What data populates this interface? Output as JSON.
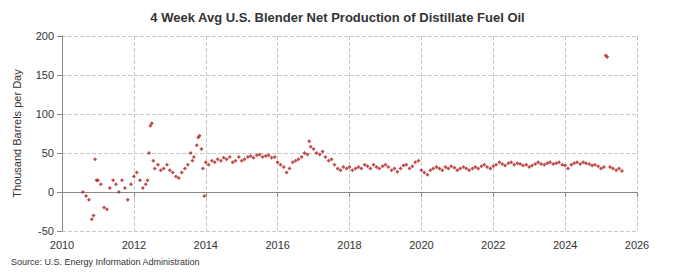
{
  "chart_data": {
    "type": "scatter",
    "title": "4 Week Avg U.S. Blender Net Production of Distillate Fuel Oil",
    "y_label": "Thousand Barrels per Day",
    "source": "Source: U.S. Energy Information Administration",
    "color": "#b22222",
    "marker": "diamond",
    "grid": true,
    "xlim": [
      2010,
      2026
    ],
    "xticks": [
      2010,
      2012,
      2014,
      2016,
      2018,
      2020,
      2022,
      2024,
      2026
    ],
    "ylim": [
      -50,
      200
    ],
    "yticks": [
      -50,
      0,
      50,
      100,
      150,
      200
    ],
    "x": [
      2010.58,
      2010.67,
      2010.75,
      2010.83,
      2010.88,
      2010.92,
      2010.96,
      2011.0,
      2011.08,
      2011.17,
      2011.25,
      2011.33,
      2011.42,
      2011.5,
      2011.58,
      2011.67,
      2011.75,
      2011.83,
      2011.92,
      2012.0,
      2012.08,
      2012.17,
      2012.25,
      2012.33,
      2012.38,
      2012.42,
      2012.46,
      2012.5,
      2012.54,
      2012.58,
      2012.67,
      2012.75,
      2012.83,
      2012.92,
      2013.0,
      2013.08,
      2013.17,
      2013.25,
      2013.33,
      2013.42,
      2013.5,
      2013.58,
      2013.63,
      2013.67,
      2013.75,
      2013.79,
      2013.83,
      2013.88,
      2013.92,
      2013.96,
      2014.0,
      2014.08,
      2014.17,
      2014.25,
      2014.33,
      2014.42,
      2014.5,
      2014.58,
      2014.67,
      2014.75,
      2014.83,
      2014.92,
      2015.0,
      2015.08,
      2015.17,
      2015.25,
      2015.33,
      2015.42,
      2015.5,
      2015.58,
      2015.67,
      2015.75,
      2015.83,
      2015.92,
      2016.0,
      2016.08,
      2016.17,
      2016.25,
      2016.33,
      2016.42,
      2016.5,
      2016.58,
      2016.67,
      2016.75,
      2016.83,
      2016.88,
      2016.92,
      2017.0,
      2017.08,
      2017.17,
      2017.25,
      2017.33,
      2017.42,
      2017.5,
      2017.58,
      2017.67,
      2017.75,
      2017.83,
      2017.92,
      2018.0,
      2018.08,
      2018.17,
      2018.25,
      2018.33,
      2018.42,
      2018.5,
      2018.58,
      2018.67,
      2018.75,
      2018.83,
      2018.92,
      2019.0,
      2019.08,
      2019.17,
      2019.25,
      2019.33,
      2019.42,
      2019.5,
      2019.58,
      2019.67,
      2019.75,
      2019.83,
      2019.92,
      2020.0,
      2020.08,
      2020.17,
      2020.25,
      2020.33,
      2020.42,
      2020.5,
      2020.58,
      2020.67,
      2020.75,
      2020.83,
      2020.92,
      2021.0,
      2021.08,
      2021.17,
      2021.25,
      2021.33,
      2021.42,
      2021.5,
      2021.58,
      2021.67,
      2021.75,
      2021.83,
      2021.92,
      2022.0,
      2022.08,
      2022.17,
      2022.25,
      2022.33,
      2022.42,
      2022.5,
      2022.58,
      2022.67,
      2022.75,
      2022.83,
      2022.92,
      2023.0,
      2023.08,
      2023.17,
      2023.25,
      2023.33,
      2023.42,
      2023.5,
      2023.58,
      2023.67,
      2023.75,
      2023.83,
      2023.92,
      2024.0,
      2024.08,
      2024.17,
      2024.25,
      2024.33,
      2024.42,
      2024.5,
      2024.58,
      2024.67,
      2024.75,
      2024.83,
      2024.92,
      2025.0,
      2025.08,
      2025.13,
      2025.17,
      2025.25,
      2025.33,
      2025.42,
      2025.5,
      2025.58
    ],
    "values": [
      0,
      -5,
      -10,
      -35,
      -30,
      42,
      15,
      15,
      10,
      -20,
      -22,
      5,
      15,
      10,
      0,
      15,
      5,
      -10,
      10,
      20,
      25,
      15,
      5,
      10,
      15,
      50,
      85,
      88,
      40,
      30,
      35,
      28,
      30,
      35,
      28,
      25,
      20,
      18,
      25,
      30,
      35,
      50,
      40,
      45,
      60,
      70,
      72,
      55,
      30,
      -5,
      38,
      35,
      40,
      38,
      42,
      40,
      44,
      42,
      45,
      38,
      40,
      45,
      40,
      42,
      45,
      46,
      44,
      47,
      48,
      45,
      46,
      47,
      44,
      45,
      38,
      35,
      32,
      25,
      30,
      38,
      40,
      42,
      45,
      50,
      48,
      65,
      58,
      55,
      50,
      48,
      52,
      45,
      40,
      42,
      35,
      30,
      28,
      32,
      30,
      32,
      28,
      30,
      32,
      30,
      35,
      33,
      30,
      35,
      32,
      30,
      33,
      35,
      32,
      28,
      30,
      26,
      30,
      34,
      35,
      30,
      33,
      38,
      40,
      28,
      25,
      22,
      28,
      30,
      32,
      30,
      28,
      32,
      30,
      33,
      31,
      28,
      30,
      32,
      30,
      28,
      30,
      32,
      30,
      33,
      35,
      32,
      30,
      33,
      35,
      38,
      36,
      34,
      37,
      38,
      35,
      37,
      36,
      34,
      35,
      32,
      34,
      36,
      38,
      36,
      35,
      37,
      38,
      36,
      37,
      38,
      35,
      34,
      30,
      35,
      37,
      38,
      36,
      38,
      37,
      36,
      34,
      35,
      33,
      30,
      32,
      175,
      173,
      32,
      30,
      28,
      30,
      27
    ]
  }
}
